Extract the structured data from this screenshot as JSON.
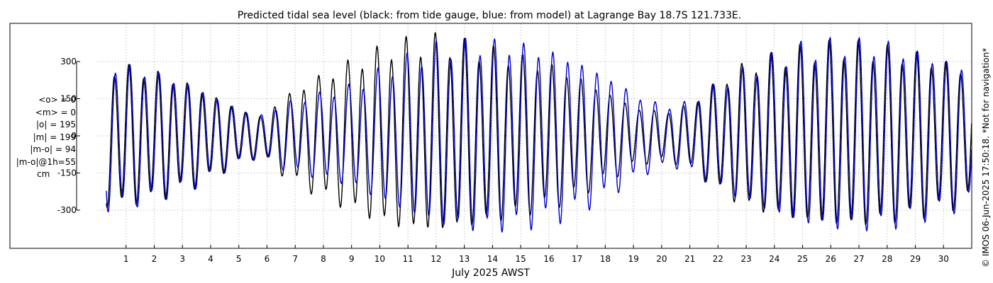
{
  "chart_data": {
    "type": "line",
    "title": "Predicted tidal sea level (black: from tide gauge, blue: from model) at Lagrange Bay 18.7S 121.733E.",
    "xlabel": "July 2025 AWST",
    "ylabel": "",
    "xlim": [
      0,
      31
    ],
    "ylim": [
      -450,
      450
    ],
    "yticks": [
      300,
      150,
      0,
      -150,
      -300
    ],
    "xticks": [
      1,
      2,
      3,
      4,
      5,
      6,
      7,
      8,
      9,
      10,
      11,
      12,
      13,
      14,
      15,
      16,
      17,
      18,
      19,
      20,
      21,
      22,
      23,
      24,
      25,
      26,
      27,
      28,
      29,
      30
    ],
    "grid": true,
    "series": [
      {
        "name": "from tide gauge",
        "color": "#000000",
        "amplitude_envelope": {
          "x": [
            0.3,
            2,
            3.5,
            5,
            5.8,
            6.5,
            7.5,
            9,
            10.5,
            12,
            13.5,
            15,
            16.5,
            18,
            19.2,
            20.2,
            21,
            22,
            23,
            24,
            25,
            26.5,
            28,
            29,
            30,
            31
          ],
          "y": [
            290,
            260,
            200,
            110,
            80,
            150,
            220,
            300,
            370,
            390,
            360,
            320,
            270,
            180,
            110,
            100,
            130,
            220,
            290,
            320,
            350,
            370,
            350,
            330,
            300,
            260
          ]
        }
      },
      {
        "name": "from model",
        "color": "#0000cc",
        "amplitude_envelope": {
          "x": [
            0.3,
            2,
            3.5,
            5,
            5.8,
            6.5,
            7.5,
            9,
            10.5,
            12,
            13.5,
            15,
            16.5,
            18,
            19.2,
            20.2,
            21,
            22,
            23,
            24,
            25,
            26.5,
            28,
            29,
            30,
            31
          ],
          "y": [
            300,
            260,
            200,
            110,
            85,
            130,
            160,
            200,
            290,
            360,
            380,
            370,
            330,
            250,
            160,
            120,
            140,
            210,
            270,
            320,
            360,
            380,
            370,
            340,
            310,
            270
          ]
        }
      }
    ],
    "stats": [
      "<o> = 0",
      "<m> = 0",
      "|o| = 195",
      "|m| = 199",
      "|m-o| = 94",
      "|m-o|@1h=55",
      "cm"
    ]
  },
  "credit": "© IMOS 06-Jun-2025 17:50:18. *Not for navigation*",
  "colors": {
    "gauge": "#000000",
    "model": "#0000cc",
    "grid": "#aaaaaa"
  }
}
